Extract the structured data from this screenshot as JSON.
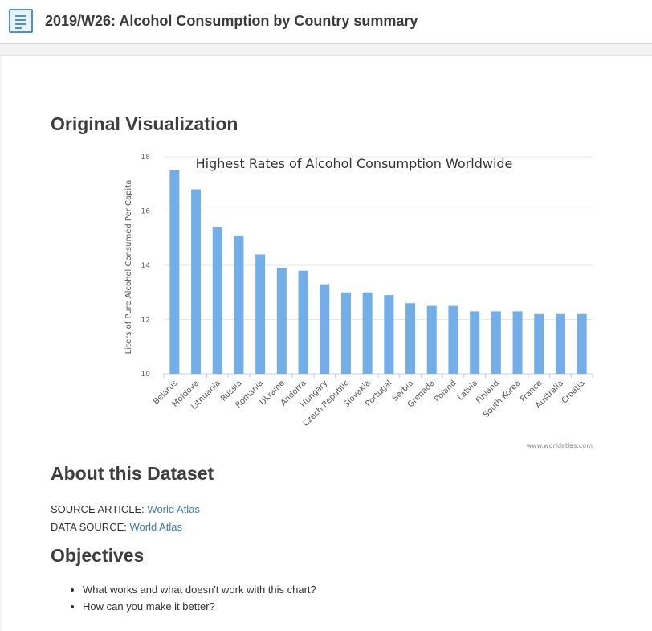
{
  "header": {
    "title": "2019/W26: Alcohol Consumption by Country summary",
    "icon": "document-icon"
  },
  "sections": {
    "original_visualization": "Original Visualization",
    "about": "About this Dataset",
    "objectives": "Objectives"
  },
  "about": {
    "source_article_label": "SOURCE ARTICLE:",
    "source_article_link": "World Atlas",
    "data_source_label": "DATA SOURCE:",
    "data_source_link": "World Atlas"
  },
  "objectives": {
    "items": [
      "What works and what doesn't work with this chart?",
      "How can you make it better?"
    ]
  },
  "colors": {
    "bar": "#74aee8",
    "link": "#3d7ab8",
    "icon": "#4a90d9"
  },
  "chart_data": {
    "type": "bar",
    "title": "Highest Rates of Alcohol Consumption Worldwide",
    "xlabel": "",
    "ylabel": "Liters of Pure Alcohol Consumed Per Capita",
    "credit": "www.worldatlas.com",
    "categories": [
      "Belarus",
      "Moldova",
      "Lithuania",
      "Russia",
      "Romania",
      "Ukraine",
      "Andorra",
      "Hungary",
      "Czech Republic",
      "Slovakia",
      "Portugal",
      "Serbia",
      "Grenada",
      "Poland",
      "Latvia",
      "Finland",
      "South Korea",
      "France",
      "Australia",
      "Croatia"
    ],
    "values": [
      17.5,
      16.8,
      15.4,
      15.1,
      14.4,
      13.9,
      13.8,
      13.3,
      13.0,
      13.0,
      12.9,
      12.6,
      12.5,
      12.5,
      12.3,
      12.3,
      12.3,
      12.2,
      12.2,
      12.2
    ],
    "ylim": [
      10,
      18
    ],
    "yticks": [
      10,
      12,
      14,
      16,
      18
    ],
    "grid": true,
    "legend": "none"
  }
}
